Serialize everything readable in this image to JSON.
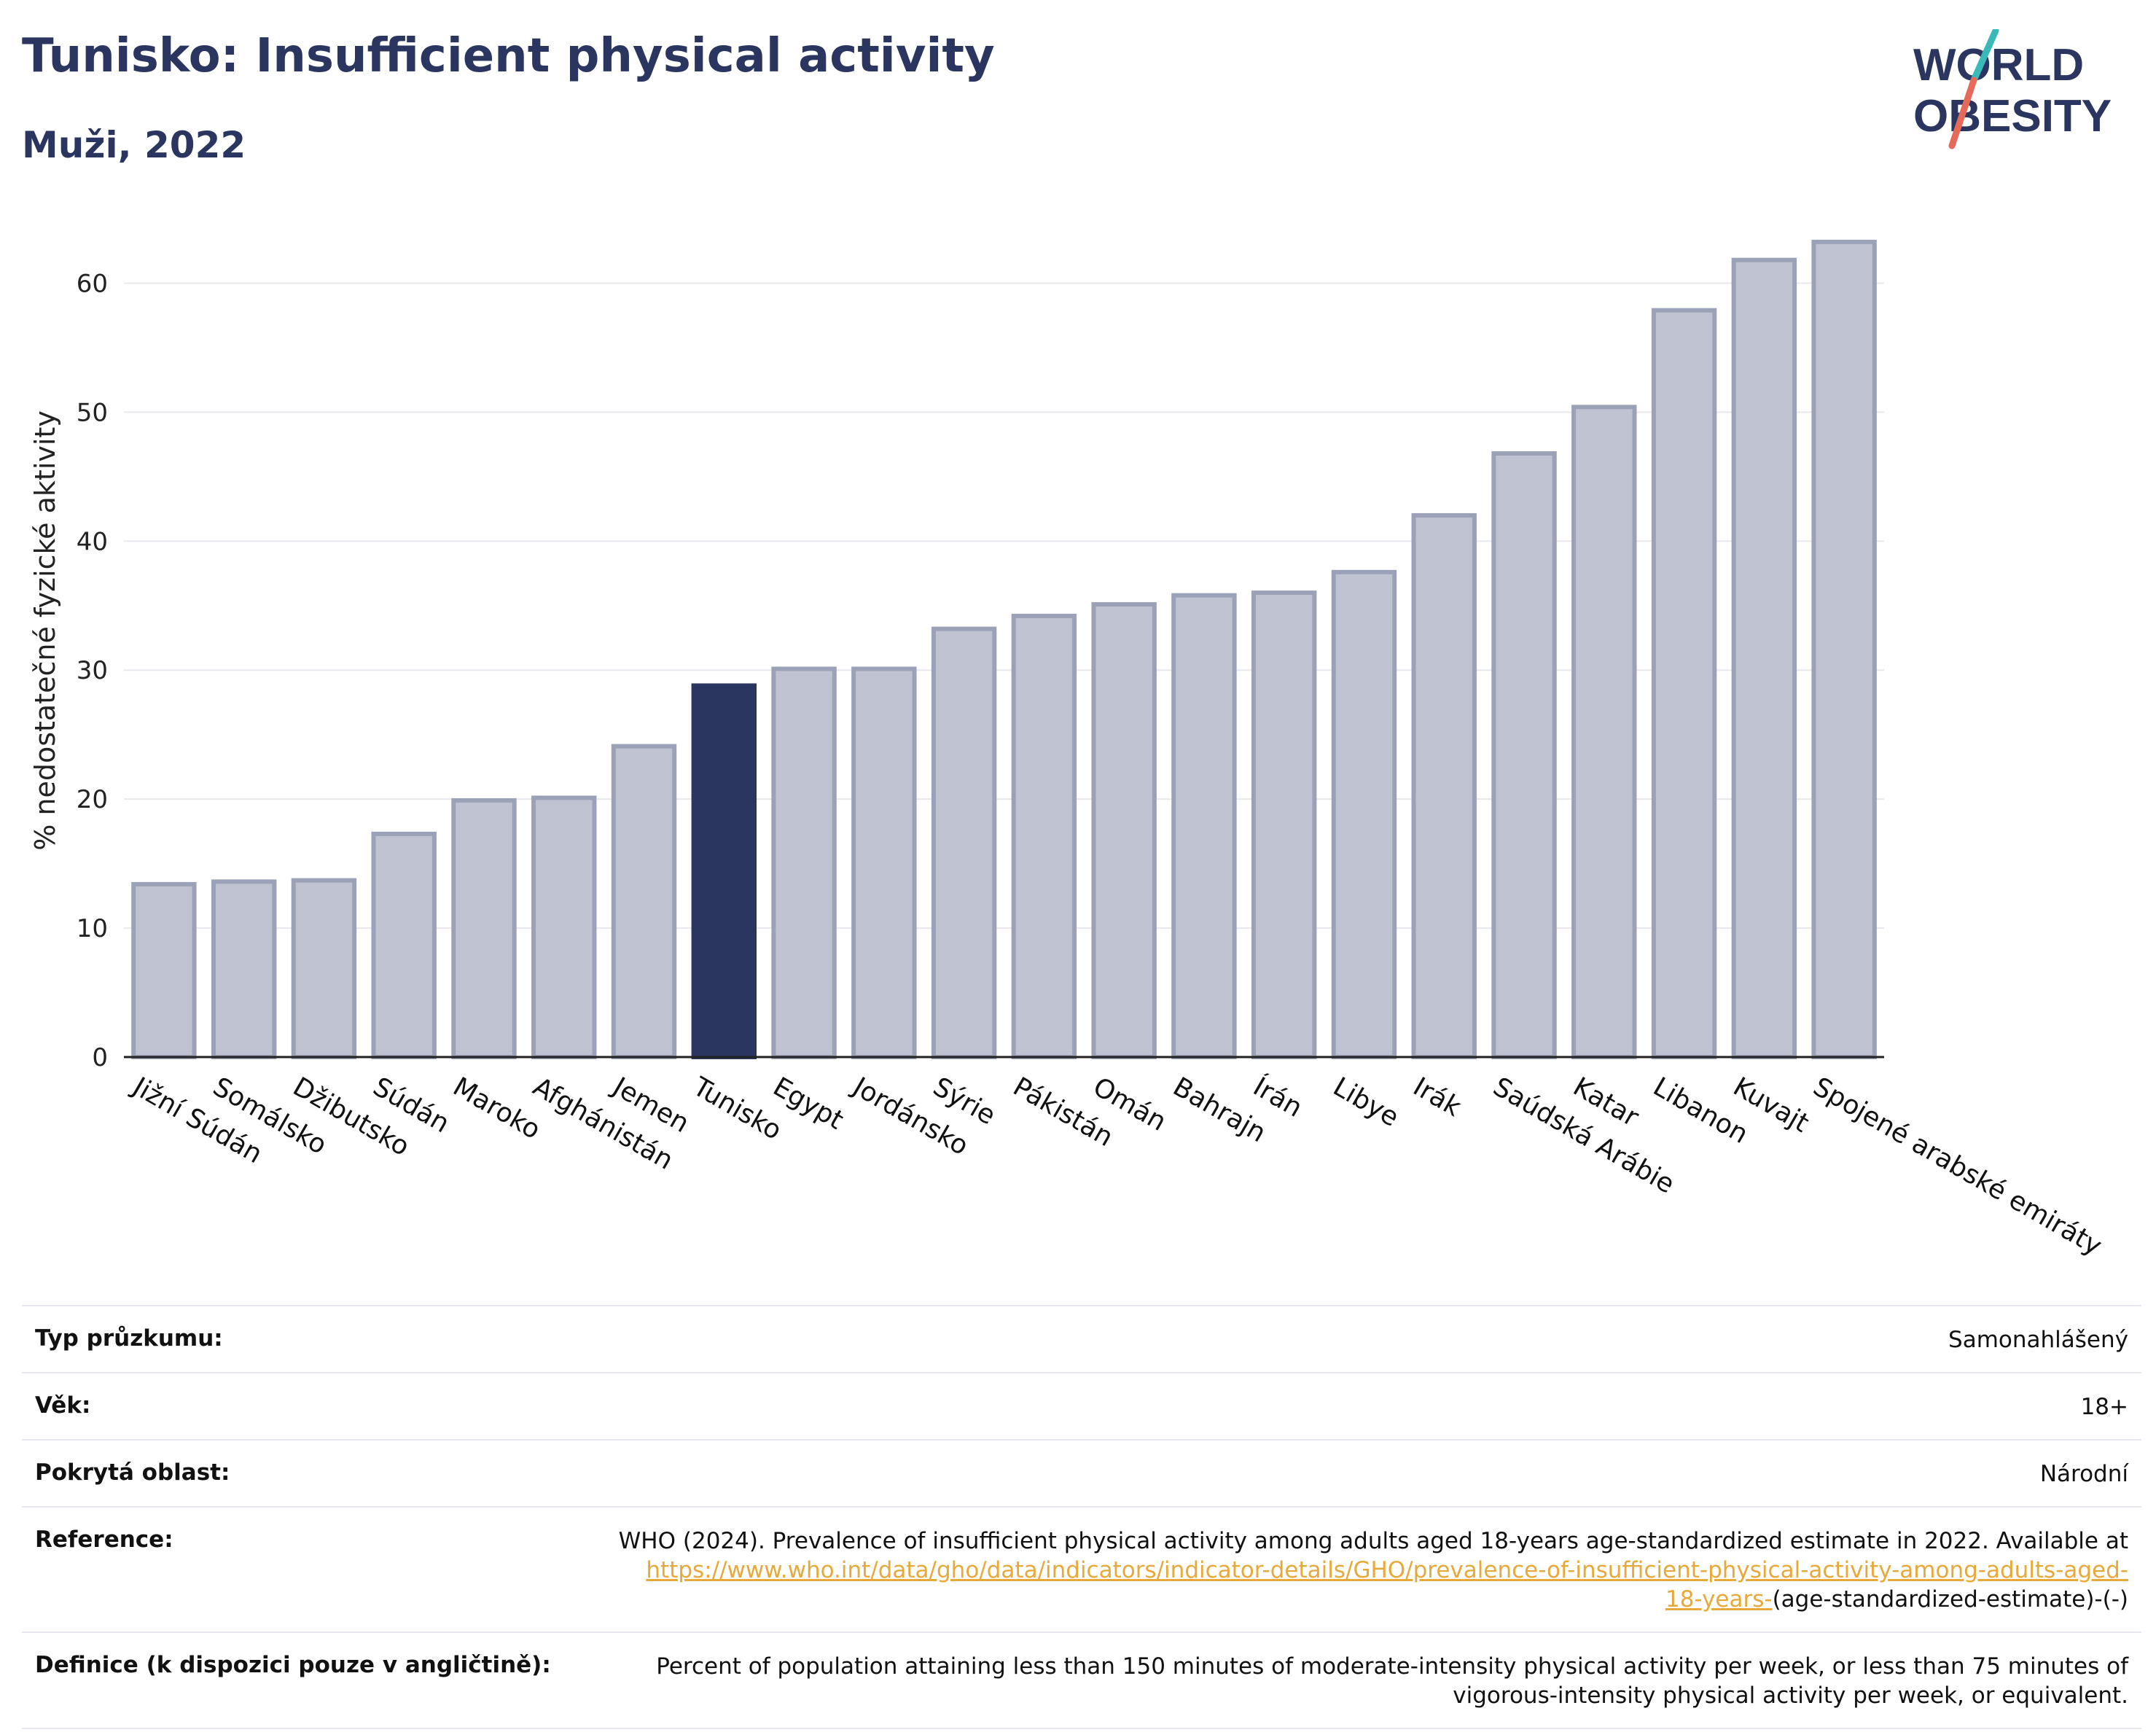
{
  "header": {
    "title": "Tunisko: Insufficient physical activity",
    "subtitle": "Muži, 2022"
  },
  "logo": {
    "line1": "WORLD",
    "line2": "OBESITY",
    "colors": {
      "text": "#2a3660",
      "slash_top": "#3bb8b8",
      "slash_bottom": "#e66a5a"
    }
  },
  "chart_data": {
    "type": "bar",
    "title": "",
    "xlabel": "",
    "ylabel": "% nedostatečné fyzické aktivity",
    "ylim": [
      0,
      65
    ],
    "yticks": [
      0,
      10,
      20,
      30,
      40,
      50,
      60
    ],
    "grid": true,
    "highlight": "Tunisko",
    "colors": {
      "bar": "#bfc3d1",
      "bar_border": "#9ba2b8",
      "highlight": "#2a3660",
      "grid": "#e6e8ee"
    },
    "categories": [
      "Jižní Súdán",
      "Somálsko",
      "Džibutsko",
      "Súdán",
      "Maroko",
      "Afghánistán",
      "Jemen",
      "Tunisko",
      "Egypt",
      "Jordánsko",
      "Sýrie",
      "Pákistán",
      "Omán",
      "Bahrajn",
      "Írán",
      "Libye",
      "Irák",
      "Saúdská Arábie",
      "Katar",
      "Libanon",
      "Kuvajt",
      "Spojené arabské emiráty"
    ],
    "values": [
      13.4,
      13.6,
      13.7,
      17.3,
      19.9,
      20.1,
      24.1,
      28.8,
      30.1,
      30.1,
      33.2,
      34.2,
      35.1,
      35.8,
      36.0,
      37.6,
      42.0,
      46.8,
      50.4,
      57.9,
      61.8,
      63.2
    ]
  },
  "details": {
    "survey_type": {
      "label": "Typ průzkumu:",
      "value": "Samonahlášený"
    },
    "age": {
      "label": "Věk:",
      "value": "18+"
    },
    "coverage": {
      "label": "Pokrytá oblast:",
      "value": "Národní"
    },
    "reference": {
      "label": "Reference:",
      "text": "WHO (2024). Prevalence of insufficient physical activity among adults aged 18-years age-standardized estimate in 2022. Available at",
      "link1": "https://www.who.int/data/gho/data/indicators/indicator-details/GHO/prevalence-of-insufficient-physical-activity-among-adults-aged-",
      "link2": "18-years-",
      "suffix": "(age-standardized-estimate)-(-)"
    },
    "definition": {
      "label": "Definice (k dispozici pouze v angličtině):",
      "line1": "Percent of population attaining less than 150 minutes of moderate-intensity physical activity per week, or less than 75 minutes of",
      "line2": "vigorous-intensity physical activity per week, or equivalent."
    }
  }
}
